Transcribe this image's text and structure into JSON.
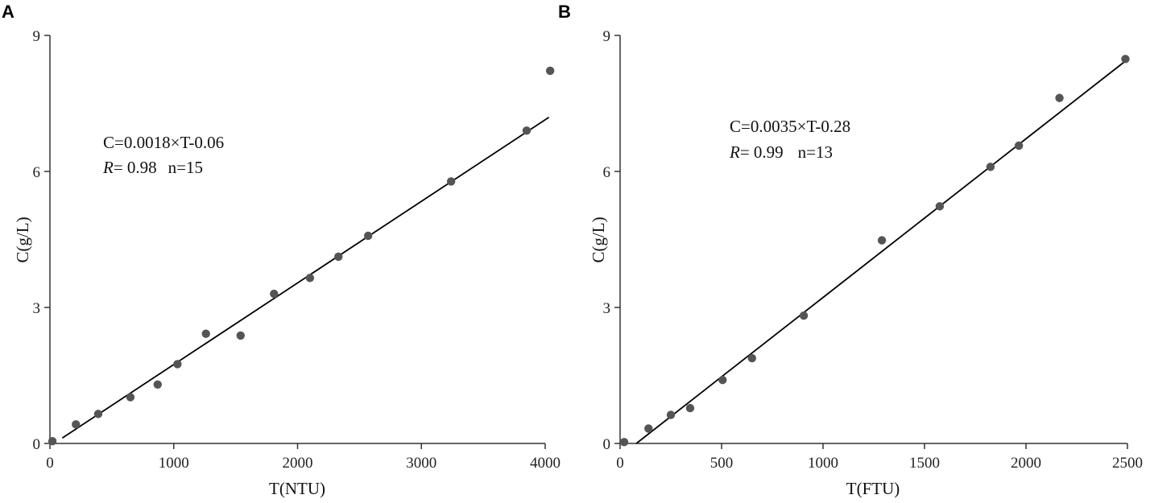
{
  "chart_data": [
    {
      "type": "scatter",
      "panel_label": "A",
      "xlabel": "T(NTU)",
      "ylabel": "C(g/L)",
      "xlim": [
        0,
        4000
      ],
      "ylim": [
        0,
        9
      ],
      "xticks": [
        0,
        1000,
        2000,
        3000,
        4000
      ],
      "yticks": [
        0,
        3,
        6,
        9
      ],
      "grid": false,
      "points": [
        {
          "x": 20,
          "y": 0.05
        },
        {
          "x": 210,
          "y": 0.42
        },
        {
          "x": 390,
          "y": 0.65
        },
        {
          "x": 650,
          "y": 1.02
        },
        {
          "x": 870,
          "y": 1.3
        },
        {
          "x": 1030,
          "y": 1.75
        },
        {
          "x": 1260,
          "y": 2.42
        },
        {
          "x": 1540,
          "y": 2.38
        },
        {
          "x": 1810,
          "y": 3.3
        },
        {
          "x": 2100,
          "y": 3.65
        },
        {
          "x": 2330,
          "y": 4.12
        },
        {
          "x": 2570,
          "y": 4.58
        },
        {
          "x": 3240,
          "y": 5.78
        },
        {
          "x": 3850,
          "y": 6.9
        },
        {
          "x": 4040,
          "y": 8.22
        }
      ],
      "fit": {
        "slope": 0.0018,
        "intercept": -0.06,
        "x_range": [
          100,
          4030
        ]
      },
      "annotations": {
        "equation": "C=0.0018×T-0.06",
        "r_symbol": "R",
        "r_value": "= 0.98",
        "n": "n=15"
      }
    },
    {
      "type": "scatter",
      "panel_label": "B",
      "xlabel": "T(FTU)",
      "ylabel": "C(g/L)",
      "xlim": [
        0,
        2500
      ],
      "ylim": [
        0,
        9
      ],
      "xticks": [
        0,
        500,
        1000,
        1500,
        2000,
        2500
      ],
      "yticks": [
        0,
        3,
        6,
        9
      ],
      "grid": false,
      "points": [
        {
          "x": 20,
          "y": 0.03
        },
        {
          "x": 140,
          "y": 0.33
        },
        {
          "x": 250,
          "y": 0.63
        },
        {
          "x": 345,
          "y": 0.78
        },
        {
          "x": 505,
          "y": 1.4
        },
        {
          "x": 650,
          "y": 1.88
        },
        {
          "x": 905,
          "y": 2.82
        },
        {
          "x": 1290,
          "y": 4.48
        },
        {
          "x": 1575,
          "y": 5.23
        },
        {
          "x": 1825,
          "y": 6.1
        },
        {
          "x": 1965,
          "y": 6.57
        },
        {
          "x": 2165,
          "y": 7.62
        },
        {
          "x": 2490,
          "y": 8.48
        }
      ],
      "fit": {
        "slope": 0.0035,
        "intercept": -0.28,
        "x_range": [
          80,
          2500
        ]
      },
      "annotations": {
        "equation": "C=0.0035×T-0.28",
        "r_symbol": "R",
        "r_value": "= 0.99",
        "n": "n=13"
      }
    }
  ]
}
